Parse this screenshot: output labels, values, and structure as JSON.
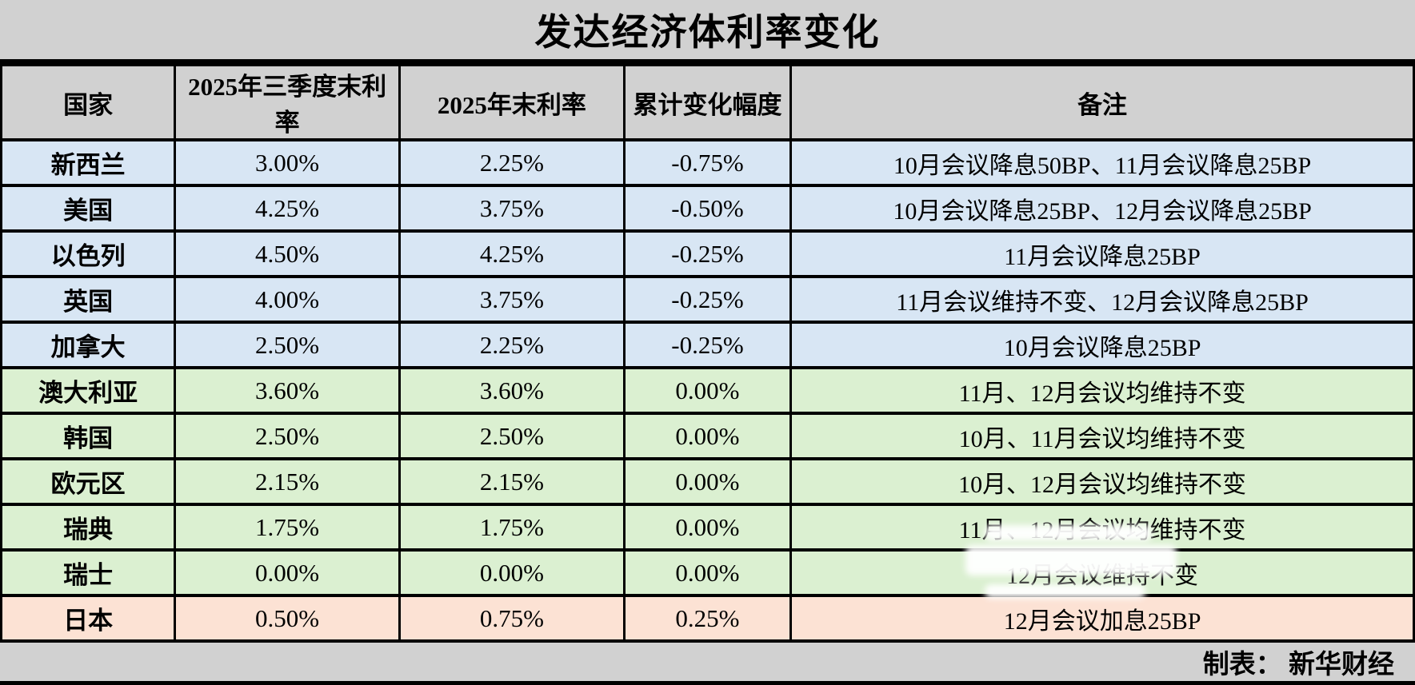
{
  "title": "发达经济体利率变化",
  "colors": {
    "cut": "#d8e6f4",
    "hold": "#dbf0d1",
    "hike": "#fce2d4",
    "band": "#d1d1d1",
    "border": "#000000"
  },
  "table": {
    "headers": {
      "country": "国家",
      "q3": "2025年三季度末利率",
      "eoy": "2025年末利率",
      "change": "累计变化幅度",
      "note": "备注"
    },
    "rows": [
      {
        "country": "新西兰",
        "q3": "3.00%",
        "eoy": "2.25%",
        "change": "-0.75%",
        "note": "10月会议降息50BP、11月会议降息25BP",
        "category": "cut"
      },
      {
        "country": "美国",
        "q3": "4.25%",
        "eoy": "3.75%",
        "change": "-0.50%",
        "note": "10月会议降息25BP、12月会议降息25BP",
        "category": "cut"
      },
      {
        "country": "以色列",
        "q3": "4.50%",
        "eoy": "4.25%",
        "change": "-0.25%",
        "note": "11月会议降息25BP",
        "category": "cut"
      },
      {
        "country": "英国",
        "q3": "4.00%",
        "eoy": "3.75%",
        "change": "-0.25%",
        "note": "11月会议维持不变、12月会议降息25BP",
        "category": "cut"
      },
      {
        "country": "加拿大",
        "q3": "2.50%",
        "eoy": "2.25%",
        "change": "-0.25%",
        "note": "10月会议降息25BP",
        "category": "cut"
      },
      {
        "country": "澳大利亚",
        "q3": "3.60%",
        "eoy": "3.60%",
        "change": "0.00%",
        "note": "11月、12月会议均维持不变",
        "category": "hold"
      },
      {
        "country": "韩国",
        "q3": "2.50%",
        "eoy": "2.50%",
        "change": "0.00%",
        "note": "10月、11月会议均维持不变",
        "category": "hold"
      },
      {
        "country": "欧元区",
        "q3": "2.15%",
        "eoy": "2.15%",
        "change": "0.00%",
        "note": "10月、12月会议均维持不变",
        "category": "hold"
      },
      {
        "country": "瑞典",
        "q3": "1.75%",
        "eoy": "1.75%",
        "change": "0.00%",
        "note": "11月、12月会议均维持不变",
        "category": "hold"
      },
      {
        "country": "瑞士",
        "q3": "0.00%",
        "eoy": "0.00%",
        "change": "0.00%",
        "note": "12月会议维持不变",
        "category": "hold",
        "smudged": true
      },
      {
        "country": "日本",
        "q3": "0.50%",
        "eoy": "0.75%",
        "change": "0.25%",
        "note": "12月会议加息25BP",
        "category": "hike"
      }
    ]
  },
  "footer": {
    "credit": "制表： 新华财经"
  }
}
